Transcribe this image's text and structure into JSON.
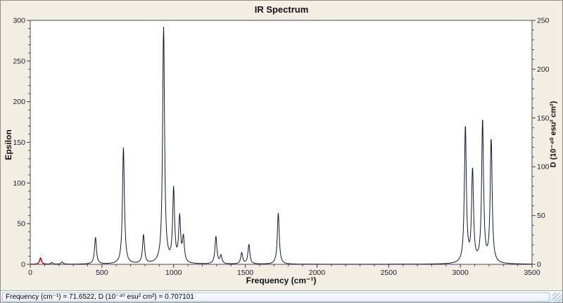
{
  "window": {
    "title": "IR Spectrum"
  },
  "status_bar": {
    "text": "Frequency (cm⁻¹) = 71.6522, D (10⁻⁴⁰ esu² cm²) = 0.707101"
  },
  "chart_data": {
    "type": "line",
    "title": "IR Spectrum",
    "xlabel": "Frequency (cm⁻¹)",
    "ylabel_left": "Epsilon",
    "ylabel_right": "D (10⁻⁴⁰ esu² cm²)",
    "xlim": [
      0,
      3500
    ],
    "ylim_left": [
      0,
      300
    ],
    "ylim_right": [
      0,
      250
    ],
    "x_ticks": [
      0,
      500,
      1000,
      1500,
      2000,
      2500,
      3000,
      3500
    ],
    "x_minor_step": 100,
    "y_ticks_left": [
      0,
      50,
      100,
      150,
      200,
      250,
      300
    ],
    "y_minor_step_left": 10,
    "y_ticks_right": [
      0,
      50,
      100,
      150,
      200,
      250
    ],
    "y_minor_step_right": 10,
    "line_color": "#14143a",
    "axis_color": "#4a4a4a",
    "plot_bg": "#ffffff",
    "peak_hwhm": 8,
    "peaks": [
      {
        "frequency": 71.6522,
        "epsilon": 8
      },
      {
        "frequency": 150,
        "epsilon": 2
      },
      {
        "frequency": 222,
        "epsilon": 3
      },
      {
        "frequency": 455,
        "epsilon": 33
      },
      {
        "frequency": 650,
        "epsilon": 143
      },
      {
        "frequency": 790,
        "epsilon": 35
      },
      {
        "frequency": 930,
        "epsilon": 290
      },
      {
        "frequency": 1000,
        "epsilon": 90
      },
      {
        "frequency": 1042,
        "epsilon": 55
      },
      {
        "frequency": 1068,
        "epsilon": 30
      },
      {
        "frequency": 1295,
        "epsilon": 34
      },
      {
        "frequency": 1330,
        "epsilon": 10
      },
      {
        "frequency": 1475,
        "epsilon": 14
      },
      {
        "frequency": 1525,
        "epsilon": 24
      },
      {
        "frequency": 1730,
        "epsilon": 63
      },
      {
        "frequency": 3035,
        "epsilon": 168
      },
      {
        "frequency": 3085,
        "epsilon": 113
      },
      {
        "frequency": 3155,
        "epsilon": 175
      },
      {
        "frequency": 3215,
        "epsilon": 152
      }
    ],
    "selected_peak": {
      "frequency": 71.6522,
      "D": 0.707101,
      "marker_color": "#cc0000"
    }
  }
}
